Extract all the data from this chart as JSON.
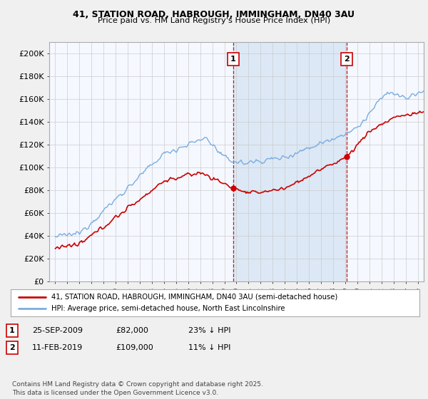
{
  "title1": "41, STATION ROAD, HABROUGH, IMMINGHAM, DN40 3AU",
  "title2": "Price paid vs. HM Land Registry's House Price Index (HPI)",
  "ylabel_ticks": [
    "£0",
    "£20K",
    "£40K",
    "£60K",
    "£80K",
    "£100K",
    "£120K",
    "£140K",
    "£160K",
    "£180K",
    "£200K"
  ],
  "ytick_values": [
    0,
    20000,
    40000,
    60000,
    80000,
    100000,
    120000,
    140000,
    160000,
    180000,
    200000
  ],
  "xlim": [
    1994.5,
    2025.5
  ],
  "ylim": [
    0,
    210000
  ],
  "marker1_x": 2009.73,
  "marker1_y": 82000,
  "marker1_label": "1",
  "marker1_date": "25-SEP-2009",
  "marker1_price": "£82,000",
  "marker1_hpi": "23% ↓ HPI",
  "marker2_x": 2019.12,
  "marker2_y": 109000,
  "marker2_label": "2",
  "marker2_date": "11-FEB-2019",
  "marker2_price": "£109,000",
  "marker2_hpi": "11% ↓ HPI",
  "legend_label_red": "41, STATION ROAD, HABROUGH, IMMINGHAM, DN40 3AU (semi-detached house)",
  "legend_label_blue": "HPI: Average price, semi-detached house, North East Lincolnshire",
  "footnote": "Contains HM Land Registry data © Crown copyright and database right 2025.\nThis data is licensed under the Open Government Licence v3.0.",
  "bg_color": "#f0f0f0",
  "plot_bg": "#f5f8ff",
  "grid_color": "#cccccc",
  "red_color": "#cc0000",
  "blue_color": "#7aade0",
  "shade_color": "#dce8f5"
}
